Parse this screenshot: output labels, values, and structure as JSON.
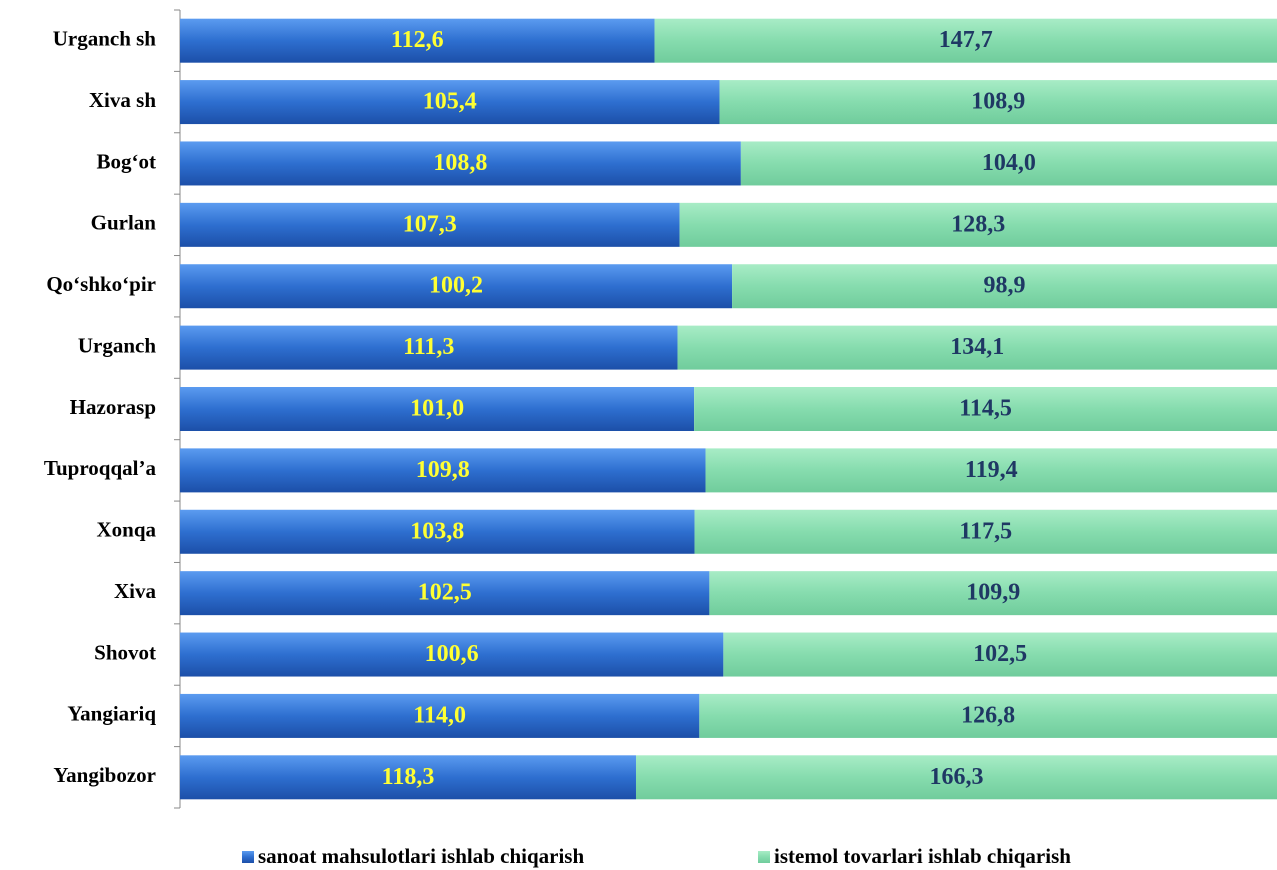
{
  "chart_data": {
    "type": "bar",
    "orientation": "horizontal",
    "stacking": "percent",
    "categories": [
      "Urganch sh",
      "Xiva sh",
      "Bog‘ot",
      "Gurlan",
      "Qo‘shko‘pir",
      "Urganch",
      "Hazorasp",
      "Tuproqqal’a",
      "Xonqa",
      "Xiva",
      "Shovot",
      "Yangiariq",
      "Yangibozor"
    ],
    "series": [
      {
        "name": "sanoat mahsulotlari ishlab chiqarish",
        "color": "#2e6fd0",
        "label_color": "#ffff33",
        "values": [
          112.6,
          105.4,
          108.8,
          107.3,
          100.2,
          111.3,
          101.0,
          109.8,
          103.8,
          102.5,
          100.6,
          114.0,
          118.3
        ],
        "value_labels": [
          "112,6",
          "105,4",
          "108,8",
          "107,3",
          "100,2",
          "111,3",
          "101,0",
          "109,8",
          "103,8",
          "102,5",
          "100,6",
          "114,0",
          "118,3"
        ]
      },
      {
        "name": "istemol tovarlari ishlab chiqarish",
        "color": "#86dcae",
        "label_color": "#1f3864",
        "values": [
          147.7,
          108.9,
          104.0,
          128.3,
          98.9,
          134.1,
          114.5,
          119.4,
          117.5,
          109.9,
          102.5,
          126.8,
          166.3
        ],
        "value_labels": [
          "147,7",
          "108,9",
          "104,0",
          "128,3",
          "98,9",
          "134,1",
          "114,5",
          "119,4",
          "117,5",
          "109,9",
          "102,5",
          "126,8",
          "166,3"
        ]
      }
    ],
    "legend": "bottom"
  }
}
